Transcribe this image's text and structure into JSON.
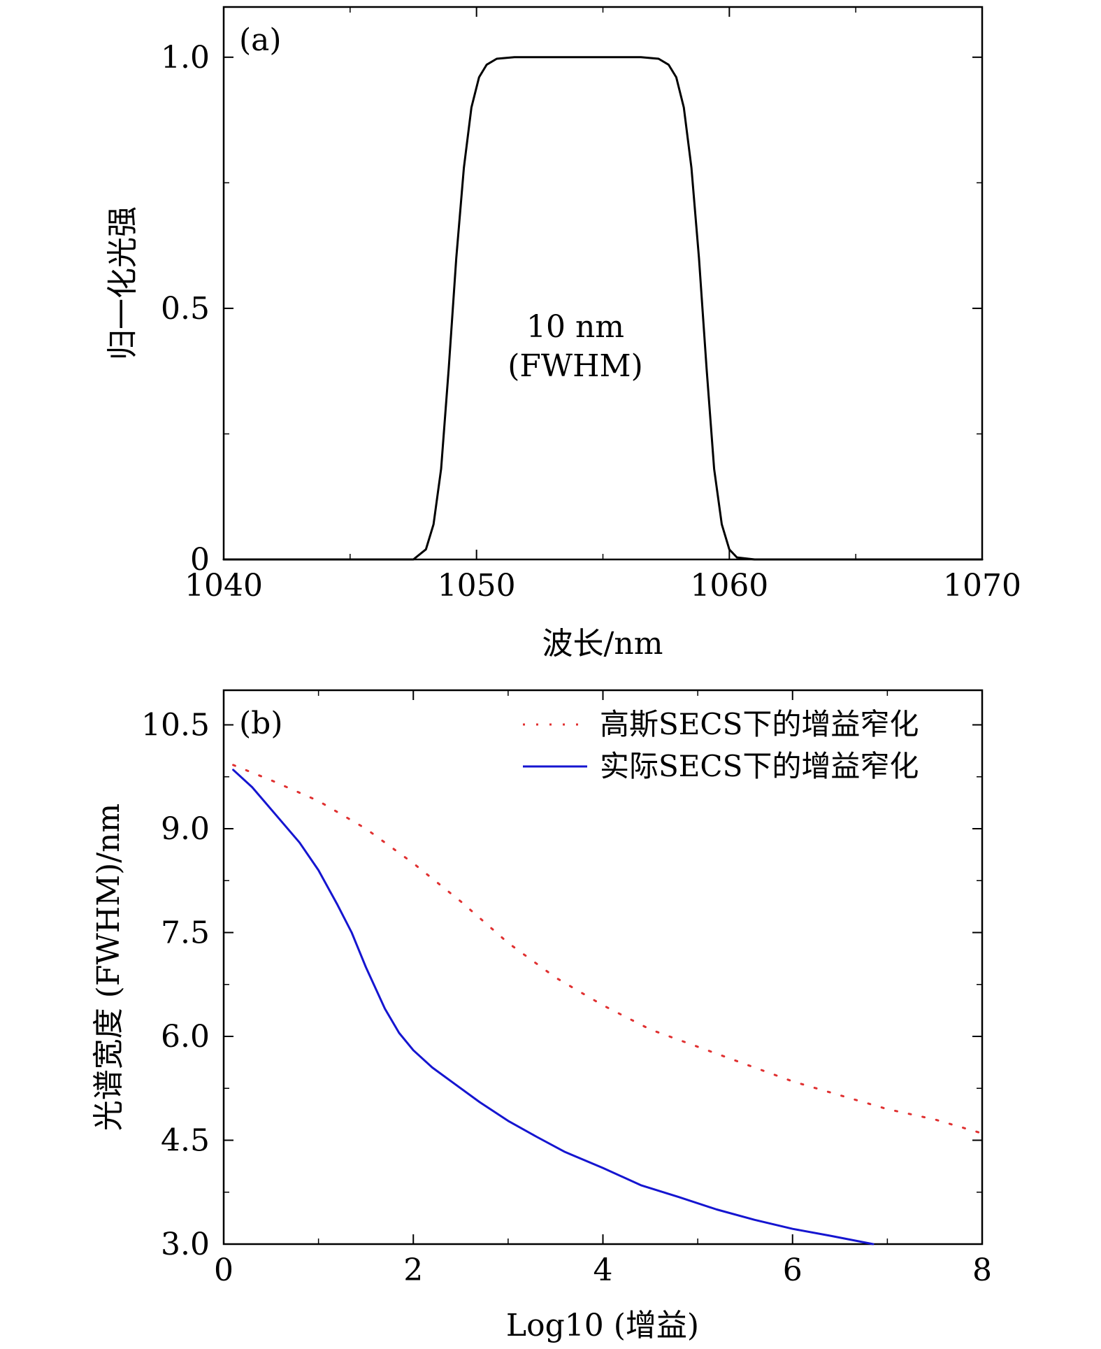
{
  "chart_data": [
    {
      "type": "line",
      "panel_label": "(a)",
      "xlabel": "波长/nm",
      "ylabel": "归一化光强",
      "xlim": [
        1040,
        1070
      ],
      "ylim": [
        0,
        1.1
      ],
      "xticks": [
        1040,
        1050,
        1060,
        1070
      ],
      "xtick_labels": [
        "1040",
        "1050",
        "1060",
        "1070"
      ],
      "yticks": [
        0,
        0.5,
        1.0
      ],
      "ytick_labels": [
        "0",
        "0.5",
        "1.0"
      ],
      "annotation": [
        "10 nm",
        "(FWHM)"
      ],
      "series": [
        {
          "name": "spectrum",
          "color": "#000000",
          "x": [
            1040,
            1046,
            1047.5,
            1048.0,
            1048.3,
            1048.6,
            1048.9,
            1049.2,
            1049.5,
            1049.8,
            1050.1,
            1050.4,
            1050.8,
            1051.5,
            1053,
            1055,
            1056.5,
            1057.2,
            1057.6,
            1057.9,
            1058.2,
            1058.5,
            1058.8,
            1059.1,
            1059.4,
            1059.7,
            1060.0,
            1060.3,
            1061,
            1070
          ],
          "y": [
            0,
            0,
            0,
            0.02,
            0.07,
            0.18,
            0.38,
            0.6,
            0.78,
            0.9,
            0.96,
            0.985,
            0.997,
            1.0,
            1.0,
            1.0,
            1.0,
            0.997,
            0.985,
            0.96,
            0.9,
            0.78,
            0.6,
            0.38,
            0.18,
            0.07,
            0.02,
            0.004,
            0,
            0
          ]
        }
      ]
    },
    {
      "type": "line",
      "panel_label": "(b)",
      "xlabel": "Log10 (增益)",
      "ylabel": "光谱宽度 (FWHM)/nm",
      "xlim": [
        0,
        8
      ],
      "ylim": [
        3.0,
        11.0
      ],
      "xticks": [
        0,
        2,
        4,
        6,
        8
      ],
      "xtick_labels": [
        "0",
        "2",
        "4",
        "6",
        "8"
      ],
      "yticks": [
        3.0,
        4.5,
        6.0,
        7.5,
        9.0,
        10.5
      ],
      "ytick_labels": [
        "3.0",
        "4.5",
        "6.0",
        "7.5",
        "9.0",
        "10.5"
      ],
      "legend_position": "top-right",
      "series": [
        {
          "name": "高斯SECS下的增益窄化",
          "style": "dotted",
          "color": "#e03030",
          "x": [
            0.1,
            0.5,
            1.0,
            1.5,
            2.0,
            2.5,
            3.0,
            3.5,
            4.0,
            4.5,
            5.0,
            5.5,
            6.0,
            6.5,
            7.0,
            7.5,
            8.0
          ],
          "y": [
            9.92,
            9.7,
            9.4,
            9.0,
            8.5,
            7.95,
            7.35,
            6.85,
            6.45,
            6.1,
            5.85,
            5.6,
            5.35,
            5.15,
            4.95,
            4.8,
            4.6
          ]
        },
        {
          "name": "实际SECS下的增益窄化",
          "style": "solid",
          "color": "#1515d0",
          "x": [
            0.1,
            0.3,
            0.55,
            0.8,
            1.0,
            1.2,
            1.35,
            1.5,
            1.7,
            1.85,
            2.0,
            2.2,
            2.4,
            2.7,
            3.0,
            3.3,
            3.6,
            4.0,
            4.4,
            4.8,
            5.2,
            5.6,
            6.0,
            6.4,
            6.85
          ],
          "y": [
            9.85,
            9.6,
            9.2,
            8.8,
            8.4,
            7.9,
            7.5,
            7.0,
            6.4,
            6.05,
            5.8,
            5.55,
            5.35,
            5.05,
            4.78,
            4.55,
            4.33,
            4.1,
            3.85,
            3.68,
            3.5,
            3.35,
            3.22,
            3.12,
            3.0
          ]
        }
      ]
    }
  ]
}
